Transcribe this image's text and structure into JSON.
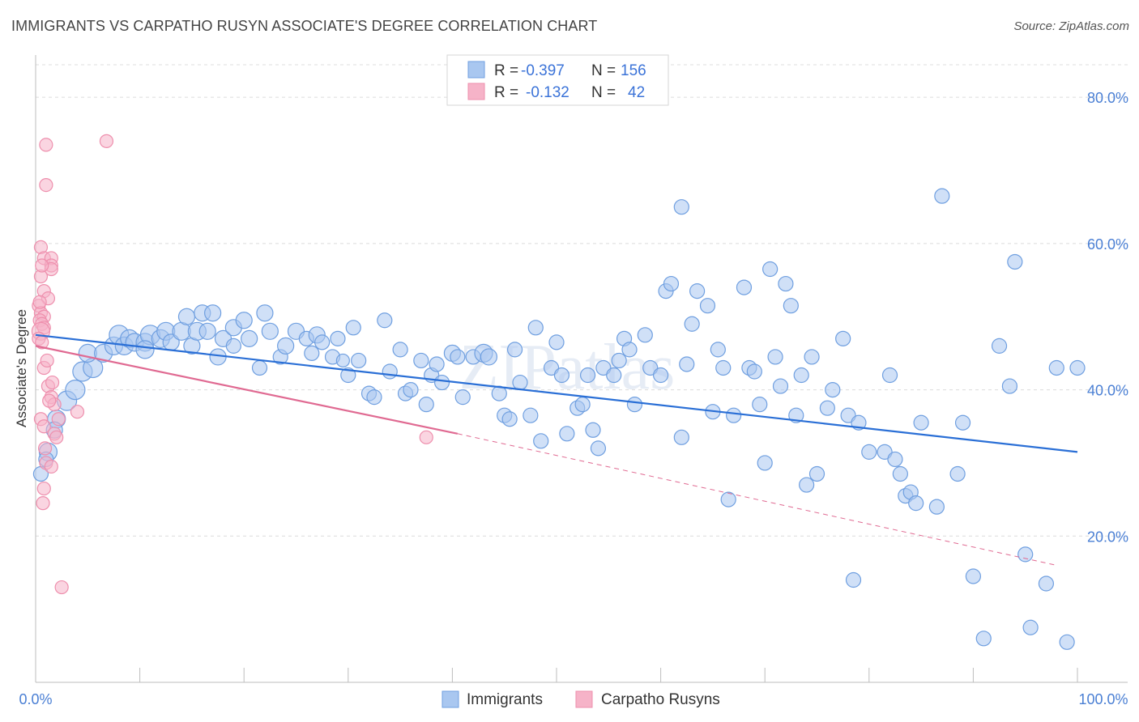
{
  "title": "IMMIGRANTS VS CARPATHO RUSYN ASSOCIATE'S DEGREE CORRELATION CHART",
  "source": "Source: ZipAtlas.com",
  "watermark": "ZIPatlas",
  "colors": {
    "immigrants_fill": "#a9c7f0",
    "immigrants_stroke": "#6f9fe0",
    "immigrants_line": "#2a6fd6",
    "rusyn_fill": "#f6b3c8",
    "rusyn_stroke": "#ee8fad",
    "rusyn_line": "#e06a92",
    "tick": "#4a7fd4",
    "grid": "#dcdcdc"
  },
  "legend": {
    "rows": [
      {
        "r_label": "R =",
        "r_value": "-0.397",
        "n_label": "N =",
        "n_value": "156"
      },
      {
        "r_label": "R =",
        "r_value": "-0.132",
        "n_label": "N =",
        "n_value": "42"
      }
    ]
  },
  "chart_data": {
    "type": "scatter",
    "xlabel": "",
    "ylabel": "Associate's Degree",
    "xlim": [
      0,
      100
    ],
    "ylim": [
      0,
      85
    ],
    "x_tick_labels": [
      "0.0%",
      "100.0%"
    ],
    "y_ticks": [
      20,
      40,
      60,
      80
    ],
    "y_tick_labels": [
      "20.0%",
      "40.0%",
      "60.0%",
      "80.0%"
    ],
    "grid": true,
    "legend_position": "top-center",
    "series": [
      {
        "name": "Immigrants",
        "trend": {
          "x": [
            0,
            100
          ],
          "y": [
            47.5,
            31.5
          ],
          "dashed_from": null
        },
        "points": [
          [
            0.5,
            28.5,
            9
          ],
          [
            1.2,
            31.5,
            11
          ],
          [
            1.0,
            30.5,
            9
          ],
          [
            2.0,
            36.0,
            11
          ],
          [
            1.8,
            34.5,
            10
          ],
          [
            3.0,
            38.5,
            12
          ],
          [
            3.8,
            40.0,
            12
          ],
          [
            4.5,
            42.5,
            12
          ],
          [
            5.5,
            43.0,
            12
          ],
          [
            5.0,
            45.0,
            11
          ],
          [
            6.5,
            45.0,
            11
          ],
          [
            7.5,
            46.0,
            11
          ],
          [
            8.0,
            47.5,
            12
          ],
          [
            8.5,
            46.0,
            11
          ],
          [
            9.0,
            47.0,
            11
          ],
          [
            9.5,
            46.5,
            11
          ],
          [
            10.5,
            46.5,
            11
          ],
          [
            11.0,
            47.5,
            12
          ],
          [
            10.5,
            45.5,
            11
          ],
          [
            12.0,
            47.0,
            11
          ],
          [
            12.5,
            48.0,
            11
          ],
          [
            13.0,
            46.5,
            10
          ],
          [
            14.0,
            48.0,
            11
          ],
          [
            14.5,
            50.0,
            10
          ],
          [
            15.0,
            46.0,
            10
          ],
          [
            15.5,
            48.0,
            11
          ],
          [
            16.5,
            48.0,
            10
          ],
          [
            16.0,
            50.5,
            10
          ],
          [
            17.0,
            50.5,
            10
          ],
          [
            17.5,
            44.5,
            10
          ],
          [
            18.0,
            47.0,
            10
          ],
          [
            19.0,
            46.0,
            9
          ],
          [
            19.0,
            48.5,
            10
          ],
          [
            20.0,
            49.5,
            10
          ],
          [
            20.5,
            47.0,
            10
          ],
          [
            21.5,
            43.0,
            9
          ],
          [
            22.0,
            50.5,
            10
          ],
          [
            22.5,
            48.0,
            10
          ],
          [
            23.5,
            44.5,
            9
          ],
          [
            24.0,
            46.0,
            10
          ],
          [
            25.0,
            48.0,
            10
          ],
          [
            26.0,
            47.0,
            9
          ],
          [
            26.5,
            45.0,
            9
          ],
          [
            27.0,
            47.5,
            10
          ],
          [
            27.5,
            46.5,
            9
          ],
          [
            28.5,
            44.5,
            9
          ],
          [
            29.0,
            47.0,
            9
          ],
          [
            29.5,
            44.0,
            8
          ],
          [
            30.0,
            42.0,
            9
          ],
          [
            30.5,
            48.5,
            9
          ],
          [
            31.0,
            44.0,
            9
          ],
          [
            32.0,
            39.5,
            9
          ],
          [
            32.5,
            39.0,
            9
          ],
          [
            33.5,
            49.5,
            9
          ],
          [
            34.0,
            42.5,
            9
          ],
          [
            35.0,
            45.5,
            9
          ],
          [
            35.5,
            39.5,
            9
          ],
          [
            36.0,
            40.0,
            9
          ],
          [
            37.0,
            44.0,
            9
          ],
          [
            37.5,
            38.0,
            9
          ],
          [
            38.0,
            42.0,
            9
          ],
          [
            38.5,
            43.5,
            9
          ],
          [
            39.0,
            41.0,
            9
          ],
          [
            40.0,
            45.0,
            10
          ],
          [
            40.5,
            44.5,
            9
          ],
          [
            41.0,
            39.0,
            9
          ],
          [
            42.0,
            44.5,
            9
          ],
          [
            43.0,
            45.0,
            11
          ],
          [
            43.5,
            44.5,
            10
          ],
          [
            44.5,
            39.5,
            9
          ],
          [
            45.0,
            36.5,
            9
          ],
          [
            45.5,
            36.0,
            9
          ],
          [
            46.0,
            45.5,
            9
          ],
          [
            46.5,
            41.0,
            9
          ],
          [
            47.5,
            36.5,
            9
          ],
          [
            48.0,
            48.5,
            9
          ],
          [
            48.5,
            33.0,
            9
          ],
          [
            49.5,
            43.0,
            9
          ],
          [
            50.0,
            46.5,
            9
          ],
          [
            50.5,
            42.0,
            9
          ],
          [
            51.0,
            34.0,
            9
          ],
          [
            52.0,
            37.5,
            9
          ],
          [
            52.5,
            38.0,
            9
          ],
          [
            53.0,
            42.0,
            9
          ],
          [
            53.5,
            34.5,
            9
          ],
          [
            54.0,
            32.0,
            9
          ],
          [
            54.5,
            43.0,
            9
          ],
          [
            55.5,
            42.0,
            9
          ],
          [
            56.0,
            44.0,
            9
          ],
          [
            56.5,
            47.0,
            9
          ],
          [
            57.0,
            45.5,
            9
          ],
          [
            57.5,
            38.0,
            9
          ],
          [
            58.5,
            47.5,
            9
          ],
          [
            59.0,
            43.0,
            9
          ],
          [
            60.0,
            42.0,
            9
          ],
          [
            60.5,
            53.5,
            9
          ],
          [
            61.0,
            54.5,
            9
          ],
          [
            62.0,
            33.5,
            9
          ],
          [
            62.5,
            43.5,
            9
          ],
          [
            63.0,
            49.0,
            9
          ],
          [
            63.5,
            53.5,
            9
          ],
          [
            64.5,
            51.5,
            9
          ],
          [
            65.0,
            37.0,
            9
          ],
          [
            65.5,
            45.5,
            9
          ],
          [
            66.0,
            43.0,
            9
          ],
          [
            66.5,
            25.0,
            9
          ],
          [
            67.0,
            36.5,
            9
          ],
          [
            68.0,
            54.0,
            9
          ],
          [
            68.5,
            43.0,
            9
          ],
          [
            69.0,
            42.5,
            9
          ],
          [
            69.5,
            38.0,
            9
          ],
          [
            70.0,
            30.0,
            9
          ],
          [
            70.5,
            56.5,
            9
          ],
          [
            71.0,
            44.5,
            9
          ],
          [
            71.5,
            40.5,
            9
          ],
          [
            72.0,
            54.5,
            9
          ],
          [
            72.5,
            51.5,
            9
          ],
          [
            73.0,
            36.5,
            9
          ],
          [
            73.5,
            42.0,
            9
          ],
          [
            74.0,
            27.0,
            9
          ],
          [
            74.5,
            44.5,
            9
          ],
          [
            75.0,
            28.5,
            9
          ],
          [
            76.0,
            37.5,
            9
          ],
          [
            76.5,
            40.0,
            9
          ],
          [
            77.5,
            47.0,
            9
          ],
          [
            78.0,
            36.5,
            9
          ],
          [
            78.5,
            14.0,
            9
          ],
          [
            79.0,
            35.5,
            9
          ],
          [
            80.0,
            31.5,
            9
          ],
          [
            81.5,
            31.5,
            9
          ],
          [
            82.0,
            42.0,
            9
          ],
          [
            82.5,
            30.5,
            9
          ],
          [
            83.0,
            28.5,
            9
          ],
          [
            83.5,
            25.5,
            9
          ],
          [
            84.0,
            26.0,
            9
          ],
          [
            84.5,
            24.5,
            9
          ],
          [
            85.0,
            35.5,
            9
          ],
          [
            86.5,
            24.0,
            9
          ],
          [
            88.5,
            28.5,
            9
          ],
          [
            89.0,
            35.5,
            9
          ],
          [
            90.0,
            14.5,
            9
          ],
          [
            91.0,
            6.0,
            9
          ],
          [
            92.5,
            46.0,
            9
          ],
          [
            93.5,
            40.5,
            9
          ],
          [
            94.0,
            57.5,
            9
          ],
          [
            95.5,
            7.5,
            9
          ],
          [
            97.0,
            13.5,
            9
          ],
          [
            98.0,
            43.0,
            9
          ],
          [
            99.0,
            5.5,
            9
          ],
          [
            100.0,
            43.0,
            9
          ],
          [
            62.0,
            65.0,
            9
          ],
          [
            87.0,
            66.5,
            9
          ],
          [
            95.0,
            17.5,
            9
          ]
        ]
      },
      {
        "name": "Carpatho Rusyns",
        "trend": {
          "x": [
            0,
            40.5
          ],
          "y": [
            46.0,
            34.0
          ],
          "dashed_from": 40.5,
          "dashed_to": 98.0,
          "dashed_to_y": 16.0
        },
        "points": [
          [
            1.0,
            73.5,
            8
          ],
          [
            1.0,
            68.0,
            8
          ],
          [
            6.8,
            74.0,
            8
          ],
          [
            0.5,
            59.5,
            8
          ],
          [
            0.8,
            58.0,
            8
          ],
          [
            1.5,
            58.0,
            8
          ],
          [
            1.5,
            57.0,
            8
          ],
          [
            1.5,
            56.5,
            8
          ],
          [
            0.5,
            55.5,
            8
          ],
          [
            0.8,
            53.5,
            8
          ],
          [
            1.2,
            52.5,
            8
          ],
          [
            0.3,
            51.5,
            8
          ],
          [
            0.5,
            50.5,
            8
          ],
          [
            0.8,
            50.0,
            8
          ],
          [
            0.4,
            49.5,
            8
          ],
          [
            0.6,
            49.0,
            8
          ],
          [
            0.8,
            48.5,
            8
          ],
          [
            0.5,
            48.0,
            11
          ],
          [
            0.3,
            47.0,
            8
          ],
          [
            0.6,
            46.5,
            8
          ],
          [
            0.8,
            43.0,
            8
          ],
          [
            1.2,
            40.5,
            8
          ],
          [
            1.5,
            39.0,
            8
          ],
          [
            1.8,
            38.0,
            8
          ],
          [
            4.0,
            37.0,
            8
          ],
          [
            0.5,
            36.0,
            8
          ],
          [
            0.8,
            35.0,
            8
          ],
          [
            1.8,
            34.0,
            8
          ],
          [
            2.0,
            33.5,
            8
          ],
          [
            1.0,
            30.0,
            8
          ],
          [
            1.5,
            29.5,
            8
          ],
          [
            0.8,
            26.5,
            8
          ],
          [
            0.7,
            24.5,
            8
          ],
          [
            2.5,
            13.0,
            8
          ],
          [
            37.5,
            33.5,
            8
          ],
          [
            0.4,
            52.0,
            8
          ],
          [
            1.1,
            44.0,
            8
          ],
          [
            1.6,
            41.0,
            8
          ],
          [
            2.2,
            36.0,
            8
          ],
          [
            0.9,
            32.0,
            8
          ],
          [
            1.3,
            38.5,
            8
          ],
          [
            0.6,
            57.0,
            8
          ]
        ]
      }
    ]
  },
  "bottom_legend": [
    {
      "label": "Immigrants"
    },
    {
      "label": "Carpatho Rusyns"
    }
  ]
}
